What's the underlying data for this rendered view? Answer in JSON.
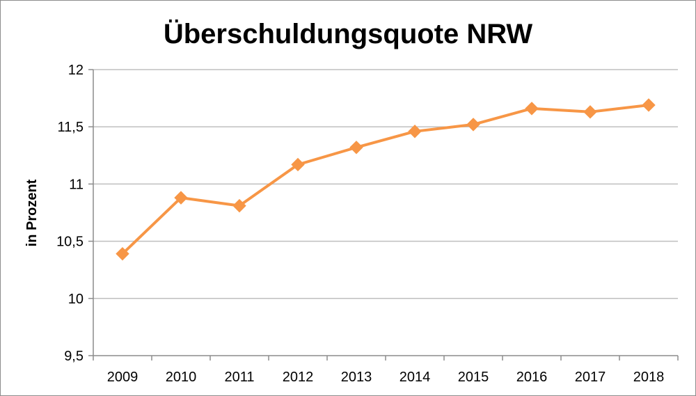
{
  "chart_data": {
    "type": "line",
    "title": "Überschuldungsquote NRW",
    "xlabel": "",
    "ylabel": "in Prozent",
    "categories": [
      "2009",
      "2010",
      "2011",
      "2012",
      "2013",
      "2014",
      "2015",
      "2016",
      "2017",
      "2018"
    ],
    "series": [
      {
        "values": [
          10.39,
          10.88,
          10.81,
          11.17,
          11.32,
          11.46,
          11.52,
          11.66,
          11.63,
          11.69
        ],
        "color": "#f79646"
      }
    ],
    "ylim": [
      9.5,
      12
    ],
    "yticks": [
      9.5,
      10,
      10.5,
      11,
      11.5,
      12
    ],
    "ytick_labels": [
      "9,5",
      "10",
      "10,5",
      "11",
      "11,5",
      "12"
    ],
    "grid": true,
    "gridColor": "#bfbfbf",
    "axisColor": "#8c8c8c",
    "marker": "diamond",
    "legend": "none"
  }
}
